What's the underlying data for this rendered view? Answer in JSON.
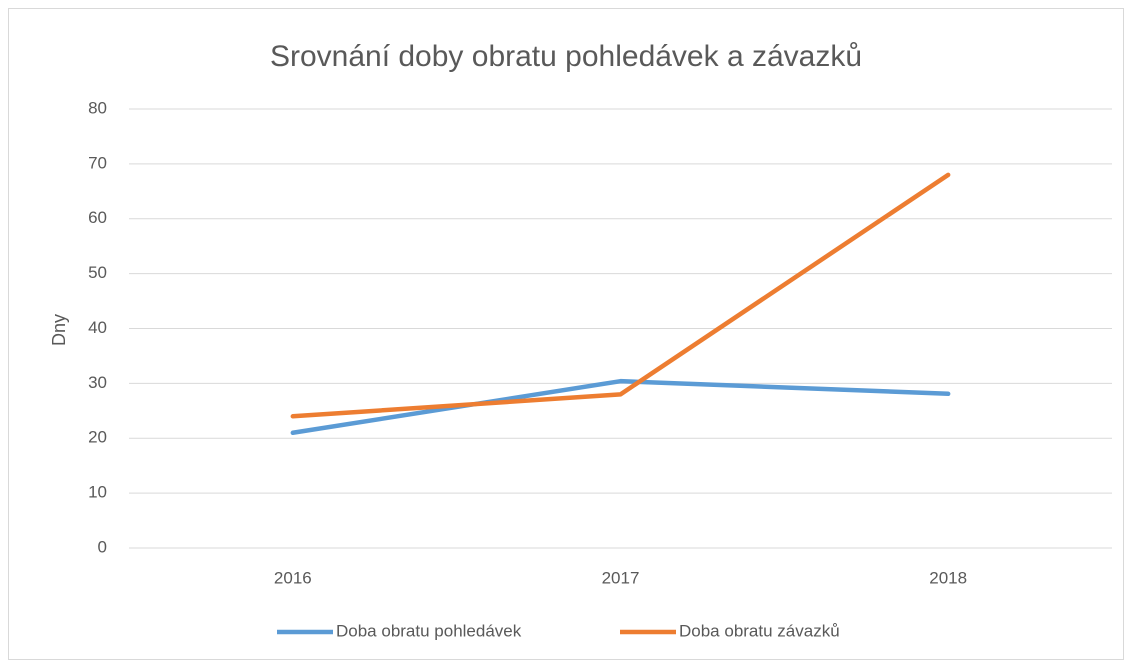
{
  "chart_data": {
    "type": "line",
    "title": "Srovnání doby obratu pohledávek a závazků",
    "y_label": "Dny",
    "categories": [
      "2016",
      "2017",
      "2018"
    ],
    "series": [
      {
        "name": "Doba obratu pohledávek",
        "color": "#5b9bd5",
        "values": [
          21,
          30.4,
          28.1
        ]
      },
      {
        "name": "Doba obratu závazků",
        "color": "#ed7d31",
        "values": [
          24,
          28,
          68
        ]
      }
    ],
    "ylim": [
      0,
      80
    ],
    "yticks": [
      0,
      10,
      20,
      30,
      40,
      50,
      60,
      70,
      80
    ],
    "grid": true,
    "legend": "bottom"
  }
}
